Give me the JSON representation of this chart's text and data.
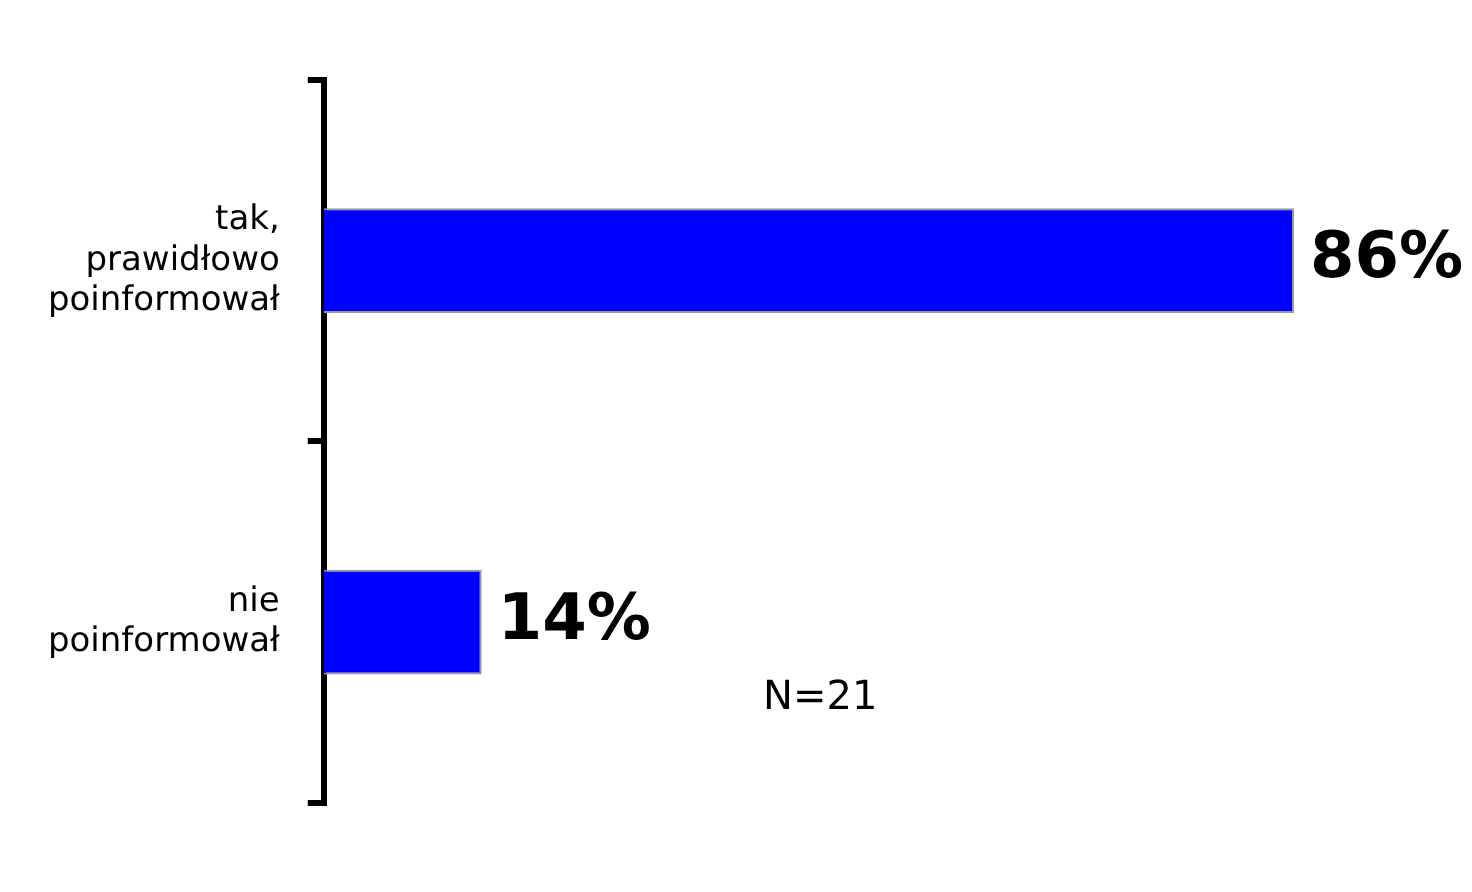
{
  "chart_data": {
    "type": "bar",
    "orientation": "horizontal",
    "categories": [
      "tak, prawidłowo poinformował",
      "nie poinformował"
    ],
    "values": [
      86,
      14
    ],
    "value_labels": [
      "86%",
      "14%"
    ],
    "color": "#0000ff",
    "grid": false,
    "legend": false,
    "annotations": [
      "N=21"
    ]
  }
}
